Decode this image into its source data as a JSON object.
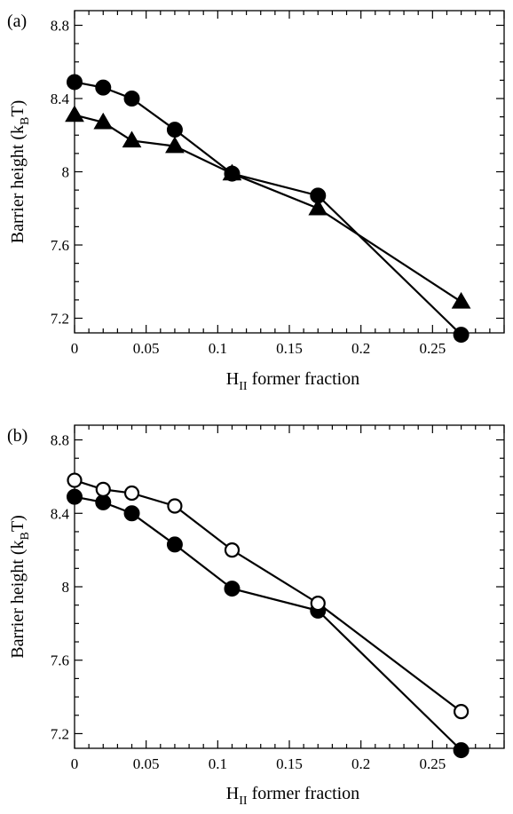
{
  "colors": {
    "foreground": "#000000",
    "background": "#ffffff",
    "marker_open_fill": "#ffffff"
  },
  "chart_data": [
    {
      "type": "line",
      "panel_label": "(a)",
      "xlabel_main": "H",
      "xlabel_sub": "II",
      "xlabel_rest": " former fraction",
      "ylabel_main": "Barrier height (k",
      "ylabel_sub": "B",
      "ylabel_rest": "T)",
      "xlim": [
        0,
        0.3
      ],
      "ylim": [
        7.12,
        8.88
      ],
      "xticks": [
        0,
        0.05,
        0.1,
        0.15,
        0.2,
        0.25
      ],
      "xtick_labels": [
        "0",
        "0.05",
        "0.1",
        "0.15",
        "0.2",
        "0.25"
      ],
      "yticks": [
        7.2,
        7.6,
        8,
        8.4,
        8.8
      ],
      "ytick_labels": [
        "7.2",
        "7.6",
        "8",
        "8.4",
        "8.8"
      ],
      "grid": false,
      "series": [
        {
          "marker": "filled-circle",
          "x": [
            0,
            0.02,
            0.04,
            0.07,
            0.11,
            0.17,
            0.27
          ],
          "y": [
            8.49,
            8.46,
            8.4,
            8.23,
            7.99,
            7.87,
            7.11
          ]
        },
        {
          "marker": "filled-triangle",
          "x": [
            0,
            0.02,
            0.04,
            0.07,
            0.11,
            0.17,
            0.27
          ],
          "y": [
            8.31,
            8.27,
            8.17,
            8.14,
            7.99,
            7.8,
            7.29
          ]
        }
      ]
    },
    {
      "type": "line",
      "panel_label": "(b)",
      "xlabel_main": "H",
      "xlabel_sub": "II",
      "xlabel_rest": " former fraction",
      "ylabel_main": "Barrier height (k",
      "ylabel_sub": "B",
      "ylabel_rest": "T)",
      "xlim": [
        0,
        0.3
      ],
      "ylim": [
        7.12,
        8.88
      ],
      "xticks": [
        0,
        0.05,
        0.1,
        0.15,
        0.2,
        0.25
      ],
      "xtick_labels": [
        "0",
        "0.05",
        "0.1",
        "0.15",
        "0.2",
        "0.25"
      ],
      "yticks": [
        7.2,
        7.6,
        8,
        8.4,
        8.8
      ],
      "ytick_labels": [
        "7.2",
        "7.6",
        "8",
        "8.4",
        "8.8"
      ],
      "grid": false,
      "series": [
        {
          "marker": "filled-circle",
          "x": [
            0,
            0.02,
            0.04,
            0.07,
            0.11,
            0.17,
            0.27
          ],
          "y": [
            8.49,
            8.46,
            8.4,
            8.23,
            7.99,
            7.87,
            7.11
          ]
        },
        {
          "marker": "open-circle",
          "x": [
            0,
            0.02,
            0.04,
            0.07,
            0.11,
            0.17,
            0.27
          ],
          "y": [
            8.58,
            8.53,
            8.51,
            8.44,
            8.2,
            7.91,
            7.32
          ]
        }
      ]
    }
  ]
}
